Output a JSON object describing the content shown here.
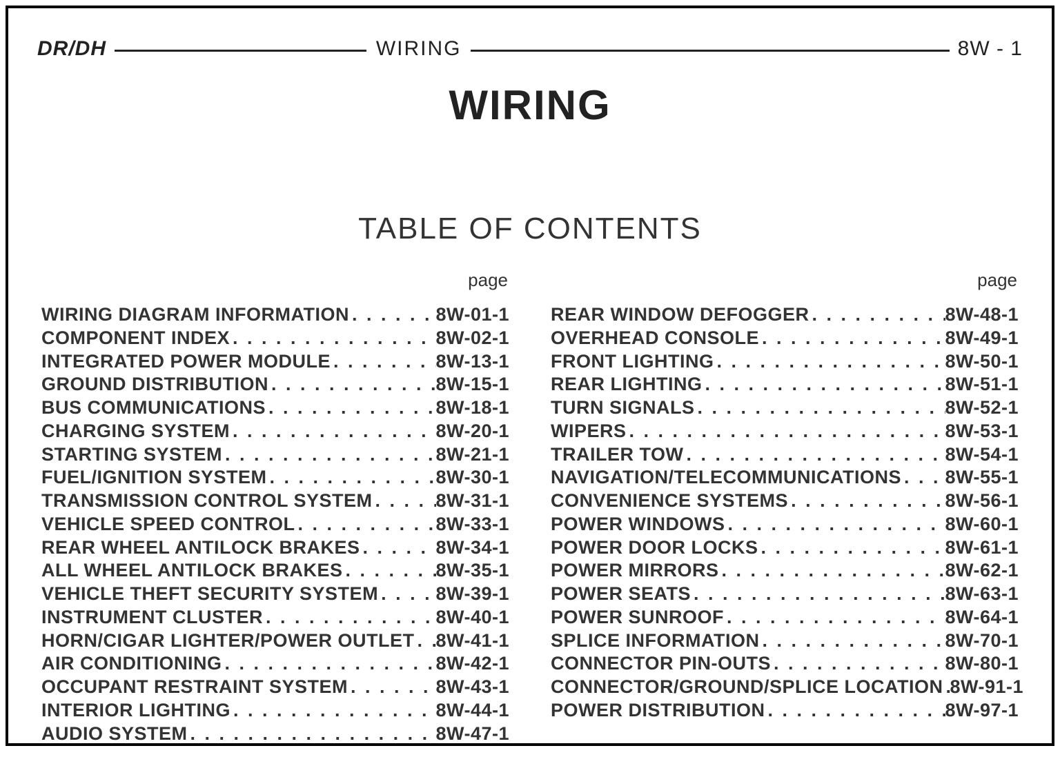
{
  "header": {
    "left": "DR/DH",
    "center": "WIRING",
    "right": "8W - 1"
  },
  "title": "WIRING",
  "subtitle": "TABLE OF CONTENTS",
  "pageLabel": "page",
  "dots": ". . . . . . . . . . . . . . . . . . . . . . . . . . . . . . . . . . . . . . . .",
  "leftColumn": [
    {
      "label": "WIRING DIAGRAM INFORMATION",
      "page": "8W-01-1"
    },
    {
      "label": "COMPONENT INDEX",
      "page": "8W-02-1"
    },
    {
      "label": "INTEGRATED POWER MODULE",
      "page": "8W-13-1"
    },
    {
      "label": "GROUND DISTRIBUTION",
      "page": "8W-15-1"
    },
    {
      "label": "BUS COMMUNICATIONS",
      "page": "8W-18-1"
    },
    {
      "label": "CHARGING SYSTEM",
      "page": "8W-20-1"
    },
    {
      "label": "STARTING SYSTEM",
      "page": "8W-21-1"
    },
    {
      "label": "FUEL/IGNITION SYSTEM",
      "page": "8W-30-1"
    },
    {
      "label": "TRANSMISSION CONTROL SYSTEM",
      "page": "8W-31-1"
    },
    {
      "label": "VEHICLE SPEED CONTROL",
      "page": "8W-33-1"
    },
    {
      "label": "REAR WHEEL ANTILOCK BRAKES",
      "page": "8W-34-1"
    },
    {
      "label": "ALL WHEEL ANTILOCK BRAKES",
      "page": "8W-35-1"
    },
    {
      "label": "VEHICLE THEFT SECURITY SYSTEM",
      "page": "8W-39-1"
    },
    {
      "label": "INSTRUMENT CLUSTER",
      "page": "8W-40-1"
    },
    {
      "label": "HORN/CIGAR LIGHTER/POWER OUTLET",
      "page": "8W-41-1"
    },
    {
      "label": "AIR CONDITIONING",
      "page": "8W-42-1"
    },
    {
      "label": "OCCUPANT RESTRAINT SYSTEM",
      "page": "8W-43-1"
    },
    {
      "label": "INTERIOR LIGHTING",
      "page": "8W-44-1"
    },
    {
      "label": "AUDIO SYSTEM",
      "page": "8W-47-1"
    }
  ],
  "rightColumn": [
    {
      "label": "REAR WINDOW DEFOGGER",
      "page": "8W-48-1"
    },
    {
      "label": "OVERHEAD CONSOLE",
      "page": "8W-49-1"
    },
    {
      "label": "FRONT LIGHTING",
      "page": "8W-50-1"
    },
    {
      "label": "REAR LIGHTING",
      "page": "8W-51-1"
    },
    {
      "label": "TURN SIGNALS",
      "page": "8W-52-1"
    },
    {
      "label": "WIPERS",
      "page": "8W-53-1"
    },
    {
      "label": "TRAILER TOW",
      "page": "8W-54-1"
    },
    {
      "label": "NAVIGATION/TELECOMMUNICATIONS",
      "page": "8W-55-1"
    },
    {
      "label": "CONVENIENCE SYSTEMS",
      "page": "8W-56-1"
    },
    {
      "label": "POWER WINDOWS",
      "page": "8W-60-1"
    },
    {
      "label": "POWER DOOR LOCKS",
      "page": "8W-61-1"
    },
    {
      "label": "POWER MIRRORS",
      "page": "8W-62-1"
    },
    {
      "label": "POWER SEATS",
      "page": "8W-63-1"
    },
    {
      "label": "POWER SUNROOF",
      "page": "8W-64-1"
    },
    {
      "label": "SPLICE INFORMATION",
      "page": "8W-70-1"
    },
    {
      "label": "CONNECTOR PIN-OUTS",
      "page": "8W-80-1"
    },
    {
      "label": "CONNECTOR/GROUND/SPLICE LOCATION",
      "page": "8W-91-1"
    },
    {
      "label": "POWER DISTRIBUTION",
      "page": "8W-97-1"
    }
  ],
  "watermark": ""
}
